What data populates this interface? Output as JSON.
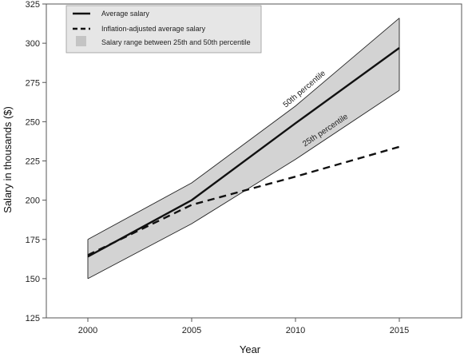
{
  "chart_data": {
    "type": "line",
    "title": "",
    "xlabel": "Year",
    "ylabel": "Salary in thousands ($)",
    "xlim": [
      1998,
      2018
    ],
    "ylim": [
      125,
      325
    ],
    "x_ticks": [
      2000,
      2005,
      2010,
      2015
    ],
    "y_ticks": [
      125,
      150,
      175,
      200,
      225,
      250,
      275,
      300,
      325
    ],
    "grid": false,
    "legend_position": "top-left",
    "x": [
      2000,
      2005,
      2010,
      2015
    ],
    "series": [
      {
        "name": "Average salary",
        "style": "solid",
        "color": "#111111",
        "values": [
          164,
          200,
          249,
          297
        ]
      },
      {
        "name": "Inflation-adjusted average salary",
        "style": "dashed",
        "color": "#111111",
        "values": [
          165,
          197,
          215,
          234
        ]
      }
    ],
    "band": {
      "name": "Salary range between 25th and 50th percentile",
      "color": "#d3d3d3",
      "upper_label": "50th percentile",
      "lower_label": "25th percentile",
      "upper": [
        175,
        211,
        260,
        316
      ],
      "lower": [
        150,
        185,
        226,
        270
      ]
    }
  }
}
